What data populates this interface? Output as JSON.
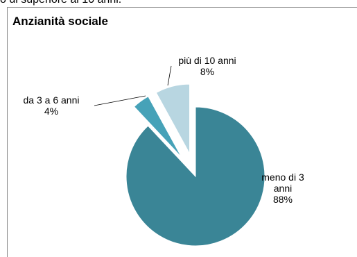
{
  "top_text": "o di superiore ai 10 anni.",
  "chart_data": {
    "type": "pie",
    "title": "Anzianità sociale",
    "slices": [
      {
        "name_lines": [
          "meno di 3",
          "anni"
        ],
        "value_label": "88%",
        "value": 88,
        "color": "#3a8596",
        "exploded": false
      },
      {
        "name_lines": [
          "da 3 a 6 anni"
        ],
        "value_label": "4%",
        "value": 4,
        "color": "#46a2b8",
        "exploded": true
      },
      {
        "name_lines": [
          "più di 10 anni"
        ],
        "value_label": "8%",
        "value": 8,
        "color": "#b8d6e1",
        "exploded": true
      }
    ]
  }
}
